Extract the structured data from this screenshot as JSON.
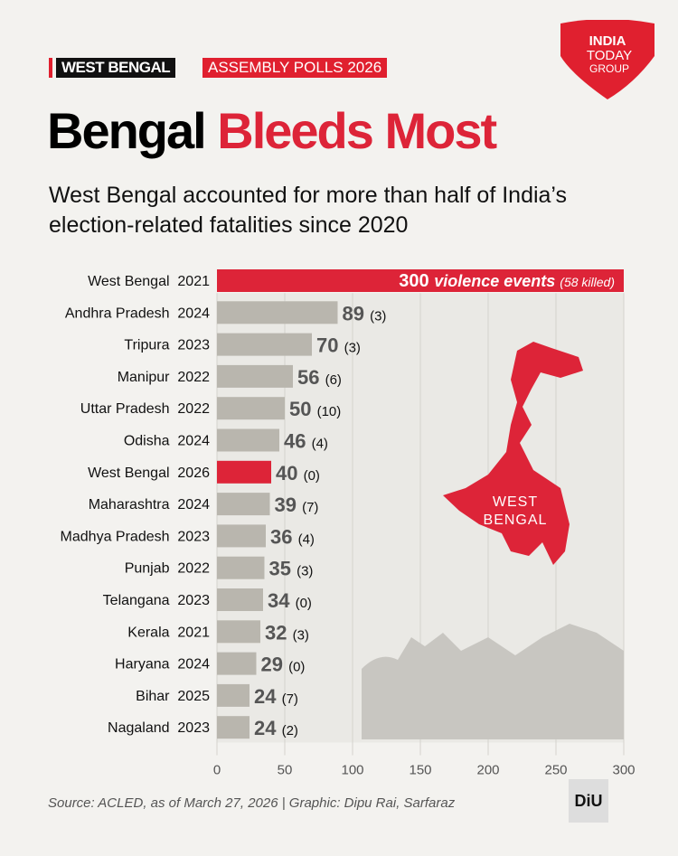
{
  "header": {
    "tag_region": "WEST BENGAL",
    "tag_event": "ASSEMBLY POLLS 2026",
    "logo_text": "INDIA TODAY GROUP"
  },
  "title": {
    "black": "Bengal",
    "red": "Bleeds Most"
  },
  "subtitle": "West Bengal accounted for more than half of India’s election-related fatalities since 2020",
  "map_label": "WEST BENGAL",
  "footer": {
    "source": "Source: ACLED, as of March 27, 2026  |  Graphic: Dipu Rai, Sarfaraz",
    "badge": "DiU"
  },
  "colors": {
    "highlight": "#dd2438",
    "default": "#b9b6ae"
  },
  "chart_data": {
    "type": "bar",
    "orientation": "horizontal",
    "xlim": [
      0,
      300
    ],
    "xticks": [
      "0",
      "50",
      "100",
      "150",
      "200",
      "250",
      "300"
    ],
    "categories": [
      "West Bengal  2021",
      "Andhra Pradesh  2024",
      "Tripura  2023",
      "Manipur  2022",
      "Uttar Pradesh  2022",
      "Odisha  2024",
      "West Bengal  2026",
      "Maharashtra  2024",
      "Madhya Pradesh  2023",
      "Punjab  2022",
      "Telangana  2023",
      "Kerala  2021",
      "Haryana  2024",
      "Bihar  2025",
      "Nagaland  2023"
    ],
    "values": [
      300,
      89,
      70,
      56,
      50,
      46,
      40,
      39,
      36,
      35,
      34,
      32,
      29,
      24,
      24
    ],
    "killed": [
      58,
      3,
      3,
      6,
      10,
      4,
      0,
      7,
      4,
      3,
      0,
      3,
      0,
      7,
      2
    ],
    "labels": [
      "300",
      "89",
      "70",
      "56",
      "50",
      "46",
      "40",
      "39",
      "36",
      "35",
      "34",
      "32",
      "29",
      "24",
      "24"
    ],
    "killed_labels": [
      "(58 killed)",
      "(3)",
      "(3)",
      "(6)",
      "(10)",
      "(4)",
      "(0)",
      "(7)",
      "(4)",
      "(3)",
      "(0)",
      "(3)",
      "(0)",
      "(7)",
      "(2)"
    ],
    "first_bar_suffix": "violence events",
    "highlight": [
      0,
      6
    ]
  }
}
